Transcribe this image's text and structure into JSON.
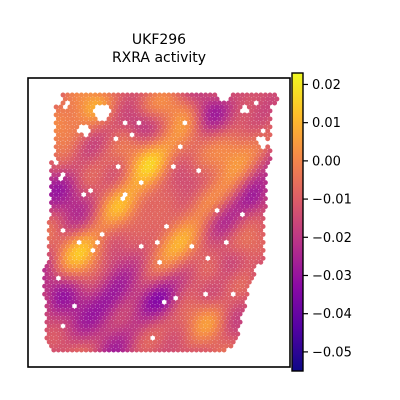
{
  "chart_data": {
    "type": "heatmap",
    "title": "UKF296",
    "subtitle": "RXRA activity",
    "xlabel": "",
    "ylabel": "",
    "grid": false,
    "colormap": {
      "name": "plasma",
      "stops": [
        "#0d0887",
        "#5302a3",
        "#8b0aa5",
        "#b83289",
        "#db5c68",
        "#f48849",
        "#febd2a",
        "#f0f921"
      ]
    },
    "colorbar": {
      "vmin": -0.055,
      "vmax": 0.023,
      "ticks": [
        0.02,
        0.01,
        0.0,
        -0.01,
        -0.02,
        -0.03,
        -0.04,
        -0.05
      ],
      "tick_labels": [
        "0.02",
        "0.01",
        "0.00",
        "−0.01",
        "−0.02",
        "−0.03",
        "−0.04",
        "−0.05"
      ]
    },
    "hotspots": [
      {
        "value": 0.022,
        "note": "upper-middle"
      },
      {
        "value": 0.012,
        "note": "center-left"
      }
    ],
    "lowspots": [
      {
        "value": -0.05,
        "note": "lower-middle"
      },
      {
        "value": -0.04,
        "note": "right edge"
      }
    ]
  }
}
